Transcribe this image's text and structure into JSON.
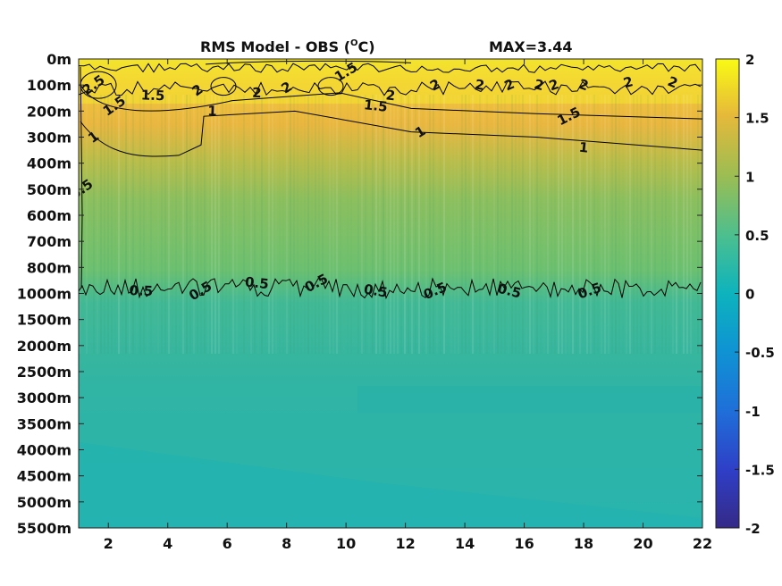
{
  "chart_data": {
    "type": "heatmap",
    "title": "RMS Model - OBS (",
    "title_super": "O",
    "title_unit": "C)",
    "max_label": "MAX=3.44",
    "x_ticks": [
      2,
      4,
      6,
      8,
      10,
      12,
      14,
      16,
      18,
      20,
      22
    ],
    "xlim": [
      1,
      22
    ],
    "y_tick_labels": [
      "0m",
      "100m",
      "200m",
      "300m",
      "400m",
      "500m",
      "600m",
      "700m",
      "800m",
      "1000m",
      "1500m",
      "2000m",
      "2500m",
      "3000m",
      "3500m",
      "4000m",
      "4500m",
      "5000m",
      "5500m"
    ],
    "colorbar": {
      "range": [
        -2,
        2
      ],
      "tick_labels": [
        "2",
        "1.5",
        "1",
        "0.5",
        "0",
        "-0.5",
        "-1",
        "-1.5",
        "-2"
      ],
      "colormap": "parula"
    },
    "contours": [
      {
        "level": "0.5",
        "label_x": [
          1.1,
          3.1,
          5.1,
          7.0,
          9.0,
          11.0,
          13.0,
          15.5,
          18.2
        ],
        "label_depth_index": [
          5.0,
          8.9,
          8.9,
          8.6,
          8.6,
          8.9,
          8.9,
          8.9,
          8.9
        ]
      },
      {
        "level": "1",
        "label_x": [
          1.5,
          5.5,
          12.5,
          18.0
        ],
        "label_depth_index": [
          3.0,
          2.0,
          2.8,
          3.4
        ]
      },
      {
        "level": "1.5",
        "label_x": [
          2.2,
          3.5,
          10.0,
          11.0,
          17.5
        ],
        "label_depth_index": [
          1.8,
          1.4,
          0.5,
          1.8,
          2.2
        ]
      },
      {
        "level": "2",
        "label_x": [
          5.0,
          7.0,
          8.0,
          11.5,
          13.0,
          14.5,
          15.5,
          16.5,
          17.0,
          18.0,
          19.5,
          21.0
        ],
        "label_depth_index": [
          1.2,
          1.3,
          1.1,
          1.4,
          1.0,
          1.0,
          1.0,
          1.0,
          1.0,
          1.0,
          0.9,
          0.9
        ]
      },
      {
        "level": "2.5",
        "label_x": [
          1.5
        ],
        "label_depth_index": [
          1.0
        ]
      }
    ]
  }
}
